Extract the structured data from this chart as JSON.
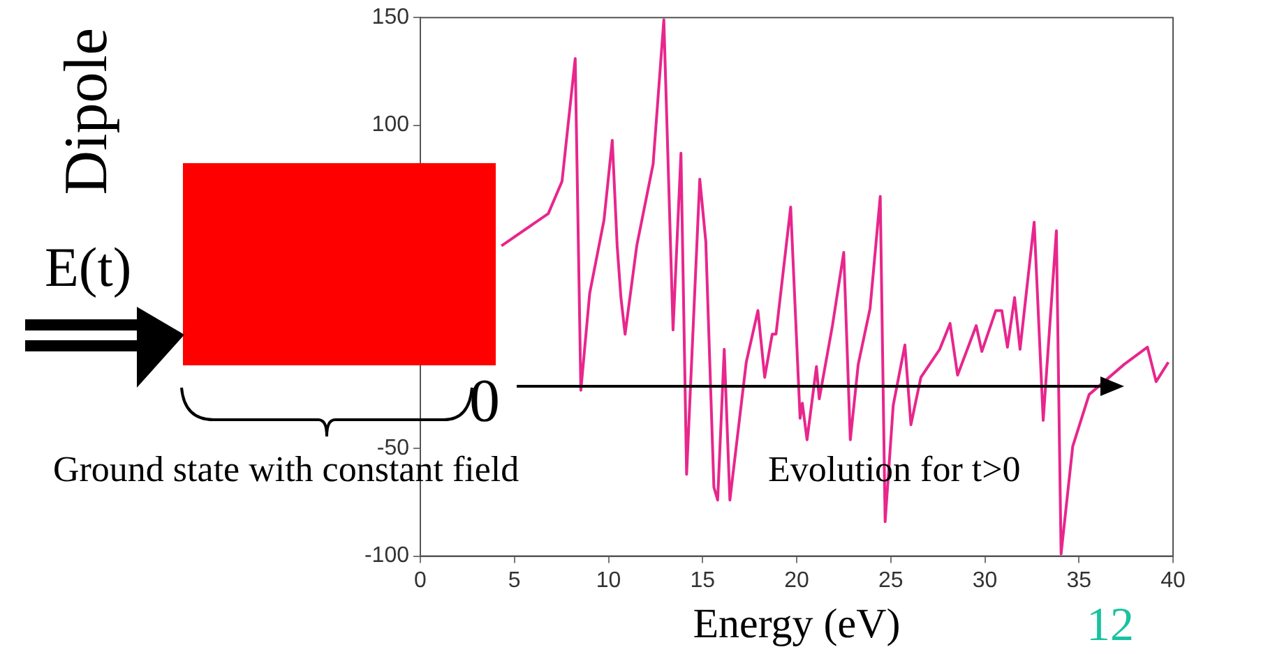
{
  "chart_data": {
    "type": "line",
    "xlabel": "Energy (eV)",
    "x": [
      4.31,
      6.8,
      7.53,
      8.23,
      8.53,
      9.0,
      9.76,
      10.2,
      10.46,
      10.66,
      10.88,
      11.5,
      12.37,
      12.94,
      13.43,
      13.85,
      14.15,
      14.85,
      15.17,
      15.6,
      15.8,
      16.15,
      16.45,
      17.32,
      17.94,
      18.3,
      18.7,
      18.9,
      19.68,
      20.18,
      20.3,
      20.55,
      21.05,
      21.2,
      21.9,
      22.5,
      22.85,
      23.27,
      23.9,
      24.44,
      24.7,
      25.13,
      25.75,
      26.07,
      26.6,
      27.6,
      28.15,
      28.55,
      29.54,
      29.84,
      30.58,
      30.9,
      31.2,
      31.58,
      31.87,
      32.62,
      33.1,
      33.8,
      34.05,
      34.67,
      35.54,
      37.4,
      38.64,
      39.1,
      39.75
    ],
    "series": [
      {
        "color": "#e8268c",
        "values": [
          44,
          59,
          74,
          131,
          -23,
          22,
          56,
          93,
          44,
          20,
          3,
          44,
          82,
          149,
          5,
          87,
          -62,
          75,
          46,
          -68,
          -74,
          -4,
          -74,
          -10,
          14,
          -17,
          3,
          3,
          62,
          -36,
          -29,
          -46,
          -12,
          -27,
          7,
          41,
          -46,
          -11,
          15,
          67,
          -84,
          -30,
          -2,
          -39,
          -17,
          -4,
          8,
          -16,
          7,
          -5,
          14,
          14,
          -3,
          20,
          -4,
          55,
          -37,
          51,
          -99,
          -49,
          -25,
          -11,
          -3,
          -19,
          -10
        ]
      }
    ],
    "xlim": [
      0,
      40
    ],
    "xticks": [
      0,
      5,
      10,
      15,
      20,
      25,
      30,
      35,
      40
    ],
    "ylim": [
      -100,
      150
    ],
    "yticks": [
      -100,
      -50,
      100,
      150
    ],
    "grid": false,
    "legend": false,
    "marker": "none",
    "line_style": "solid",
    "annotations": [
      "Dipole",
      "E(t)",
      "0",
      "Ground state with constant field",
      "Evolution for t>0",
      "12"
    ]
  }
}
